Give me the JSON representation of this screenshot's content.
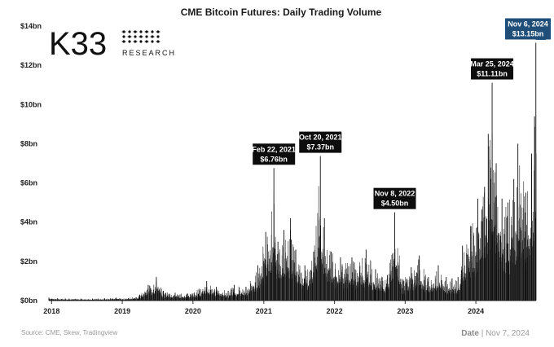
{
  "chart_data": {
    "type": "bar",
    "title": "CME Bitcoin Futures: Daily Trading Volume",
    "y_unit": "bn",
    "y_tick_labels": [
      "$0bn",
      "$2bn",
      "$4bn",
      "$6bn",
      "$8bn",
      "$10bn",
      "$12bn",
      "$14bn"
    ],
    "y_tick_values": [
      0,
      2,
      4,
      6,
      8,
      10,
      12,
      14
    ],
    "ylim": [
      0,
      14
    ],
    "x_tick_labels": [
      "2018",
      "2019",
      "2020",
      "2021",
      "2022",
      "2023",
      "2024"
    ],
    "x_tick_years": [
      2018,
      2019,
      2020,
      2021,
      2022,
      2023,
      2024
    ],
    "xlim": [
      "2017-12-18",
      "2024-11-07"
    ],
    "series": [
      {
        "color": "#111111",
        "x": [
          "2017-12-18",
          "2018-02-01",
          "2018-04-01",
          "2018-06-01",
          "2018-08-01",
          "2018-10-01",
          "2018-12-01",
          "2019-02-01",
          "2019-04-01",
          "2019-05-15",
          "2019-06-26",
          "2019-08-01",
          "2019-10-01",
          "2019-12-01",
          "2020-02-01",
          "2020-03-12",
          "2020-05-01",
          "2020-07-01",
          "2020-08-01",
          "2020-10-01",
          "2020-12-01",
          "2021-01-11",
          "2021-02-22",
          "2021-03-15",
          "2021-04-15",
          "2021-05-19",
          "2021-06-15",
          "2021-08-01",
          "2021-09-15",
          "2021-10-20",
          "2021-11-10",
          "2021-12-15",
          "2022-02-01",
          "2022-04-01",
          "2022-06-13",
          "2022-08-01",
          "2022-10-01",
          "2022-11-08",
          "2022-12-15",
          "2023-02-01",
          "2023-03-15",
          "2023-05-01",
          "2023-06-21",
          "2023-08-01",
          "2023-10-01",
          "2023-10-24",
          "2023-12-05",
          "2024-01-11",
          "2024-02-15",
          "2024-03-05",
          "2024-03-25",
          "2024-04-15",
          "2024-05-15",
          "2024-06-15",
          "2024-07-15",
          "2024-08-05",
          "2024-09-15",
          "2024-10-15",
          "2024-10-30",
          "2024-11-06"
        ],
        "values": [
          0.15,
          0.12,
          0.1,
          0.1,
          0.1,
          0.12,
          0.15,
          0.12,
          0.3,
          0.8,
          1.2,
          0.5,
          0.4,
          0.35,
          0.6,
          1.0,
          0.7,
          0.5,
          0.8,
          0.7,
          1.8,
          3.5,
          6.76,
          3.0,
          3.6,
          4.2,
          2.6,
          1.8,
          2.5,
          7.37,
          4.2,
          2.5,
          2.2,
          2.2,
          2.6,
          1.6,
          1.3,
          4.5,
          1.1,
          1.7,
          2.3,
          1.2,
          1.8,
          1.2,
          1.2,
          2.8,
          3.8,
          5.2,
          5.8,
          8.5,
          11.11,
          7.0,
          5.2,
          5.0,
          6.2,
          8.0,
          5.5,
          7.5,
          9.4,
          13.15
        ]
      }
    ],
    "annotations": [
      {
        "date": "Feb 22, 2021",
        "value_label": "$6.76bn",
        "x": "2021-02-22",
        "y": 6.76
      },
      {
        "date": "Oct 20, 2021",
        "value_label": "$7.37bn",
        "x": "2021-10-20",
        "y": 7.37
      },
      {
        "date": "Nov 8, 2022",
        "value_label": "$4.50bn",
        "x": "2022-11-08",
        "y": 4.5
      },
      {
        "date": "Mar 25, 2024",
        "value_label": "$11.11bn",
        "x": "2024-03-25",
        "y": 11.11
      },
      {
        "date": "Nov 6, 2024",
        "value_label": "$13.15bn",
        "x": "2024-11-06",
        "y": 13.15,
        "highlight": true
      }
    ],
    "grid": false,
    "legend": "none"
  },
  "logo": {
    "brand": "K33",
    "sub": "RESEARCH"
  },
  "footer": {
    "source": "Source:  CME, Skew, Tradingview",
    "date_label": "Date",
    "date_value": "| Nov 7, 2024"
  },
  "colors": {
    "bar": "#111111",
    "annotation": "#0d0d0d",
    "highlight": "#1f4e79",
    "axis": "#333333"
  }
}
